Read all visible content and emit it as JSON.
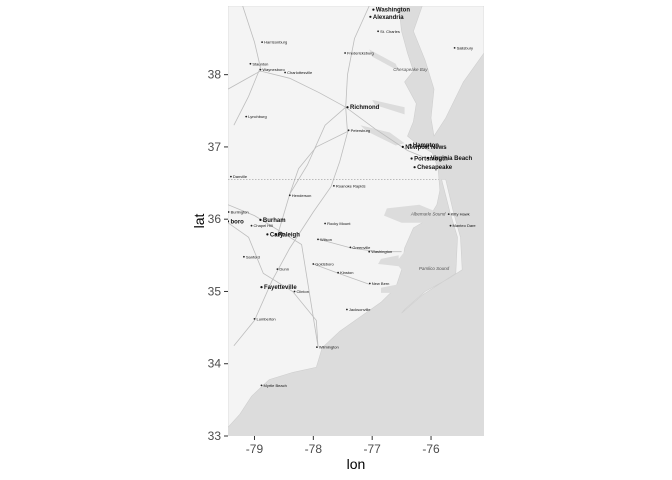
{
  "chart_data": {
    "type": "map",
    "xlabel": "lon",
    "ylabel": "lat",
    "xlim": [
      -79.45,
      -75.1
    ],
    "ylim": [
      33.0,
      38.95
    ],
    "x_ticks": [
      -79,
      -78,
      -77,
      -76
    ],
    "x_tick_labels": [
      "-79",
      "-78",
      "-77",
      "-76"
    ],
    "y_ticks": [
      33,
      34,
      35,
      36,
      37,
      38
    ],
    "y_tick_labels": [
      "33",
      "34",
      "35",
      "36",
      "37",
      "38"
    ],
    "colors": {
      "land": "#f4f4f4",
      "water": "#dcdcdc",
      "roads": "#bdbdbd",
      "text": "#111111"
    },
    "major_cities": [
      {
        "name": "Washington",
        "lon": -76.98,
        "lat": 38.9
      },
      {
        "name": "Alexandria",
        "lon": -77.03,
        "lat": 38.8
      },
      {
        "name": "Richmond",
        "lon": -77.42,
        "lat": 37.55
      },
      {
        "name": "Hampton",
        "lon": -76.35,
        "lat": 37.03
      },
      {
        "name": "Newport News",
        "lon": -76.48,
        "lat": 37.0
      },
      {
        "name": "Portsmouth",
        "lon": -76.33,
        "lat": 36.84
      },
      {
        "name": "Virginia Beach",
        "lon": -76.05,
        "lat": 36.85
      },
      {
        "name": "Chesapeake",
        "lon": -76.28,
        "lat": 36.72
      },
      {
        "name": "Burham",
        "lon": -78.9,
        "lat": 35.99
      },
      {
        "name": "Cary",
        "lon": -78.78,
        "lat": 35.79
      },
      {
        "name": "Raleigh",
        "lon": -78.64,
        "lat": 35.79
      },
      {
        "name": "Fayetteville",
        "lon": -78.88,
        "lat": 35.06
      },
      {
        "name": "boro",
        "lon": -79.45,
        "lat": 35.97
      }
    ],
    "minor_cities": [
      {
        "name": "St. Charles",
        "lon": -76.9,
        "lat": 38.6
      },
      {
        "name": "Harrisonburg",
        "lon": -78.87,
        "lat": 38.45
      },
      {
        "name": "Fredericksburg",
        "lon": -77.46,
        "lat": 38.3
      },
      {
        "name": "Staunton",
        "lon": -79.07,
        "lat": 38.15
      },
      {
        "name": "Waynesboro",
        "lon": -78.9,
        "lat": 38.07
      },
      {
        "name": "Charlottesville",
        "lon": -78.48,
        "lat": 38.03
      },
      {
        "name": "Salisbury",
        "lon": -75.6,
        "lat": 38.37
      },
      {
        "name": "Lynchburg",
        "lon": -79.14,
        "lat": 37.42
      },
      {
        "name": "Petersburg",
        "lon": -77.4,
        "lat": 37.23
      },
      {
        "name": "Danville",
        "lon": -79.4,
        "lat": 36.59
      },
      {
        "name": "Henderson",
        "lon": -78.4,
        "lat": 36.33
      },
      {
        "name": "Roanoke Rapids",
        "lon": -77.65,
        "lat": 36.46
      },
      {
        "name": "Burlington",
        "lon": -79.44,
        "lat": 36.1
      },
      {
        "name": "Chapel Hill",
        "lon": -79.05,
        "lat": 35.91
      },
      {
        "name": "Rocky Mount",
        "lon": -77.8,
        "lat": 35.94
      },
      {
        "name": "Kitty Hawk",
        "lon": -75.7,
        "lat": 36.07
      },
      {
        "name": "Manteo Dare",
        "lon": -75.67,
        "lat": 35.91
      },
      {
        "name": "Wilson",
        "lon": -77.92,
        "lat": 35.72
      },
      {
        "name": "Greenville",
        "lon": -77.37,
        "lat": 35.61
      },
      {
        "name": "Washington",
        "lon": -77.05,
        "lat": 35.55
      },
      {
        "name": "Sanford",
        "lon": -79.18,
        "lat": 35.48
      },
      {
        "name": "Goldsboro",
        "lon": -78.0,
        "lat": 35.38
      },
      {
        "name": "Dunn",
        "lon": -78.61,
        "lat": 35.31
      },
      {
        "name": "Kinston",
        "lon": -77.58,
        "lat": 35.26
      },
      {
        "name": "New Bern",
        "lon": -77.04,
        "lat": 35.11
      },
      {
        "name": "Clinton",
        "lon": -78.32,
        "lat": 35.0
      },
      {
        "name": "Jacksonville",
        "lon": -77.43,
        "lat": 34.75
      },
      {
        "name": "Lumberton",
        "lon": -79.0,
        "lat": 34.62
      },
      {
        "name": "Wilmington",
        "lon": -77.94,
        "lat": 34.23
      },
      {
        "name": "Myrtle Beach",
        "lon": -78.88,
        "lat": 33.7
      }
    ],
    "water_labels": [
      {
        "name": "Chesapeake Bay",
        "lon": -76.35,
        "lat": 38.05
      },
      {
        "name": "Albemarle Sound",
        "lon": -76.05,
        "lat": 36.05
      },
      {
        "name": "Pamlico Sound",
        "lon": -75.95,
        "lat": 35.3
      }
    ]
  }
}
